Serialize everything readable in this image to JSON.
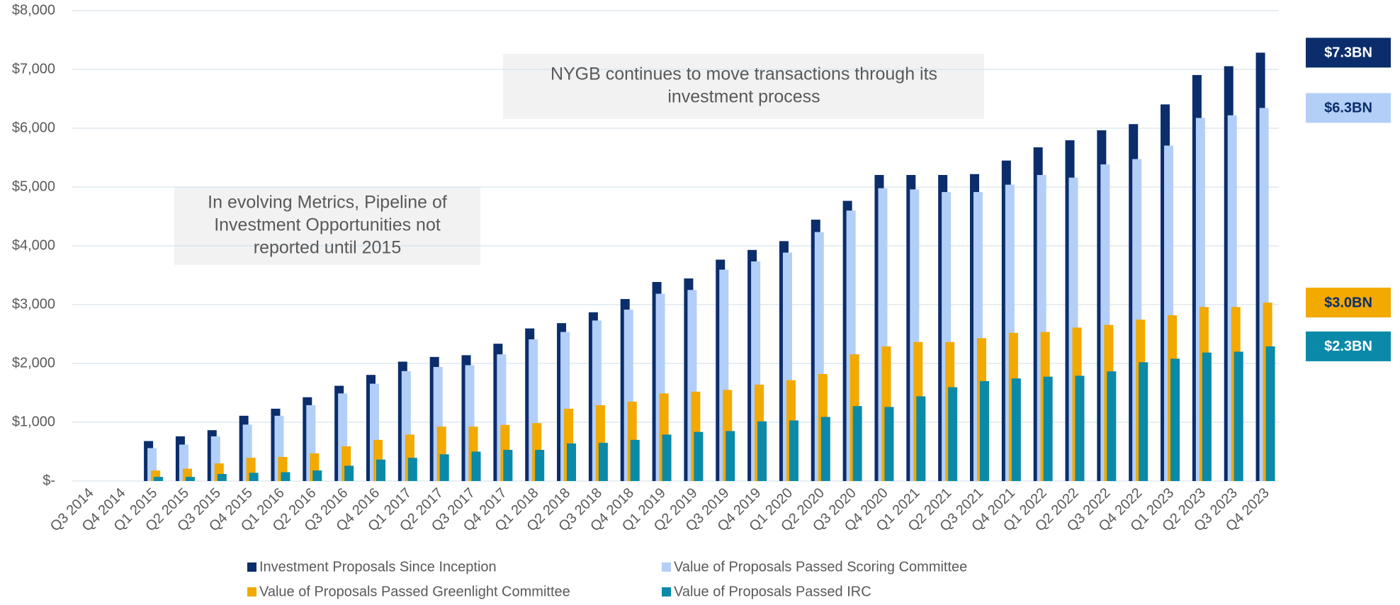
{
  "chart_data": {
    "type": "bar",
    "categories": [
      "Q3 2014",
      "Q4 2014",
      "Q1 2015",
      "Q2 2015",
      "Q3 2015",
      "Q4 2015",
      "Q1 2016",
      "Q2 2016",
      "Q3 2016",
      "Q4 2016",
      "Q1 2017",
      "Q2 2017",
      "Q3 2017",
      "Q4 2017",
      "Q1 2018",
      "Q2 2018",
      "Q3 2018",
      "Q4 2018",
      "Q1 2019",
      "Q2 2019",
      "Q3 2019",
      "Q4 2019",
      "Q1 2020",
      "Q2 2020",
      "Q3 2020",
      "Q4 2020",
      "Q1 2021",
      "Q2 2021",
      "Q3 2021",
      "Q4 2021",
      "Q1 2022",
      "Q2 2022",
      "Q3 2022",
      "Q4 2022",
      "Q1 2023",
      "Q2 2023",
      "Q3 2023",
      "Q4 2023"
    ],
    "series": [
      {
        "name": "Investment Proposals Since Inception",
        "color": "#0b2d6b",
        "end_label": "$7.3BN",
        "end_label_text_color": "#ffffff",
        "values": [
          null,
          null,
          680,
          760,
          865,
          1110,
          1230,
          1425,
          1620,
          1805,
          2030,
          2110,
          2140,
          2335,
          2595,
          2685,
          2870,
          3095,
          3385,
          3445,
          3765,
          3930,
          4080,
          4445,
          4765,
          5205,
          5205,
          5205,
          5220,
          5450,
          5675,
          5795,
          5965,
          6070,
          6405,
          6905,
          7055,
          7285
        ]
      },
      {
        "name": "Value of Proposals Passed Scoring Committee",
        "color": "#b3cff7",
        "end_label": "$6.3BN",
        "end_label_text_color": "#0b2d6b",
        "values": [
          null,
          null,
          560,
          620,
          760,
          960,
          1110,
          1290,
          1490,
          1655,
          1870,
          1940,
          1970,
          2155,
          2410,
          2535,
          2730,
          2915,
          3185,
          3250,
          3595,
          3735,
          3885,
          4235,
          4600,
          4980,
          4960,
          4915,
          4915,
          5040,
          5205,
          5160,
          5385,
          5475,
          5705,
          6175,
          6220,
          6345
        ]
      },
      {
        "name": "Value of Proposals Passed Greenlight Committee",
        "color": "#f2a900",
        "end_label": "$3.0BN",
        "end_label_text_color": "#0b2d6b",
        "values": [
          null,
          null,
          180,
          210,
          300,
          395,
          410,
          470,
          590,
          700,
          790,
          925,
          925,
          955,
          985,
          1230,
          1290,
          1350,
          1490,
          1520,
          1550,
          1640,
          1715,
          1820,
          2155,
          2290,
          2365,
          2365,
          2430,
          2520,
          2535,
          2610,
          2655,
          2745,
          2820,
          2960,
          2960,
          3035
        ]
      },
      {
        "name": "Value of Proposals Passed IRC",
        "color": "#0a8aa8",
        "end_label": "$2.3BN",
        "end_label_text_color": "#ffffff",
        "values": [
          null,
          null,
          70,
          70,
          120,
          140,
          150,
          180,
          260,
          365,
          395,
          455,
          500,
          530,
          530,
          640,
          650,
          700,
          790,
          835,
          850,
          1015,
          1030,
          1090,
          1275,
          1260,
          1440,
          1595,
          1700,
          1745,
          1775,
          1790,
          1865,
          2020,
          2080,
          2185,
          2200,
          2290
        ]
      }
    ],
    "ylim": [
      0,
      8000
    ],
    "yticks": [
      {
        "value": 0,
        "label": "$-"
      },
      {
        "value": 1000,
        "label": "$1,000"
      },
      {
        "value": 2000,
        "label": "$2,000"
      },
      {
        "value": 3000,
        "label": "$3,000"
      },
      {
        "value": 4000,
        "label": "$4,000"
      },
      {
        "value": 5000,
        "label": "$5,000"
      },
      {
        "value": 6000,
        "label": "$6,000"
      },
      {
        "value": 7000,
        "label": "$7,000"
      },
      {
        "value": 8000,
        "label": "$8,000"
      }
    ],
    "grid": true,
    "annotations": [
      {
        "lines": [
          "NYGB continues to move transactions through its",
          "investment process"
        ]
      },
      {
        "lines": [
          "In evolving Metrics, Pipeline of",
          "Investment Opportunities not",
          "reported until 2015"
        ]
      }
    ]
  }
}
